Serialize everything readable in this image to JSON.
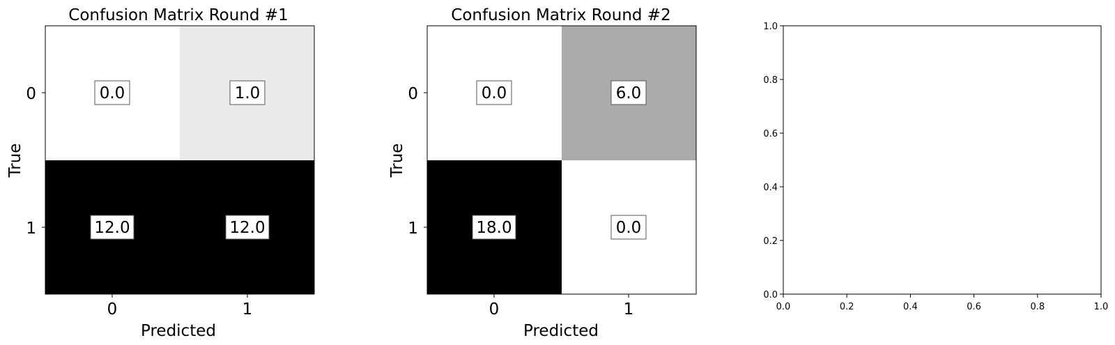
{
  "chart_data": [
    {
      "type": "heatmap",
      "title": "Confusion Matrix Round #1",
      "xlabel": "Predicted",
      "ylabel": "True",
      "x_categories": [
        "0",
        "1"
      ],
      "y_categories": [
        "0",
        "1"
      ],
      "values": [
        [
          0.0,
          1.0
        ],
        [
          12.0,
          12.0
        ]
      ],
      "value_labels": [
        [
          "0.0",
          "1.0"
        ],
        [
          "12.0",
          "12.0"
        ]
      ],
      "colormap": "gray_r",
      "color_range": [
        0,
        12
      ]
    },
    {
      "type": "heatmap",
      "title": "Confusion Matrix Round #2",
      "xlabel": "Predicted",
      "ylabel": "True",
      "x_categories": [
        "0",
        "1"
      ],
      "y_categories": [
        "0",
        "1"
      ],
      "values": [
        [
          0.0,
          6.0
        ],
        [
          18.0,
          0.0
        ]
      ],
      "value_labels": [
        [
          "0.0",
          "6.0"
        ],
        [
          "18.0",
          "0.0"
        ]
      ],
      "colormap": "gray_r",
      "color_range": [
        0,
        18
      ]
    },
    {
      "type": "scatter",
      "title": "",
      "xlabel": "",
      "ylabel": "",
      "series": [],
      "xlim": [
        0.0,
        1.0
      ],
      "ylim": [
        0.0,
        1.0
      ],
      "xticks": [
        "0.0",
        "0.2",
        "0.4",
        "0.6",
        "0.8",
        "1.0"
      ],
      "yticks": [
        "0.0",
        "0.2",
        "0.4",
        "0.6",
        "0.8",
        "1.0"
      ]
    }
  ]
}
